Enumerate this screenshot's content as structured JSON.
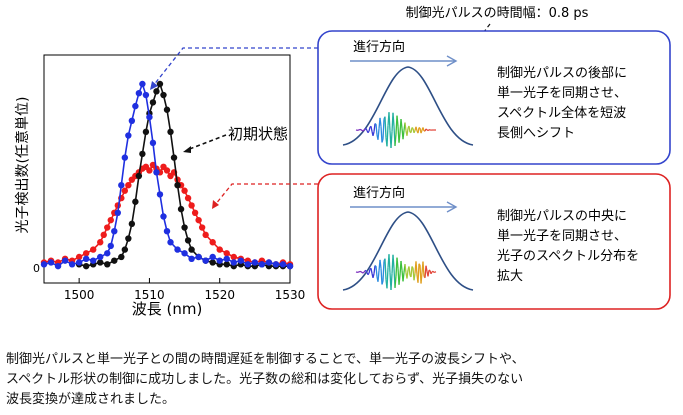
{
  "colors": {
    "blue": "#1f2fe0",
    "black": "#111111",
    "red": "#ee1c1c",
    "box_blue": "#3344cc",
    "box_red": "#dd2222",
    "arrow": "#6f8fc8",
    "gaussian": "#2e4f86"
  },
  "top_label": "制御光パルスの時間幅：0.8 ps",
  "annotation_label": "初期状態",
  "panels": [
    {
      "direction_label": "進行方向",
      "text_lines": [
        "制御光パルスの後部に",
        "単一光子を同期させ、",
        "スペクトル全体を短波",
        "長側へシフト"
      ]
    },
    {
      "direction_label": "進行方向",
      "text_lines": [
        "制御光パルスの中央に",
        "単一光子を同期させ、",
        "光子のスペクトル分布を",
        "拡大"
      ]
    }
  ],
  "caption_lines": [
    "制御光パルスと単一光子との間の時間遅延を制御することで、単一光子の波長シフトや、",
    "スペクトル形状の制御に成功しました。光子数の総和は変化しておらず、光子損失のない",
    "波長変換が達成されました。"
  ],
  "chart_data": {
    "type": "scatter",
    "xlabel": "波長 (nm)",
    "ylabel": "光子検出数(任意単位)",
    "xlim": [
      1495,
      1530
    ],
    "ylim": [
      0,
      1.1
    ],
    "x_ticks": [
      1500,
      1510,
      1520,
      1530
    ],
    "y_ticks": [
      0
    ],
    "grid": false,
    "series": [
      {
        "color": "#1f2fe0",
        "points": [
          [
            1495,
            0.02
          ],
          [
            1496,
            0.03
          ],
          [
            1497,
            0.01
          ],
          [
            1498,
            0.04
          ],
          [
            1499,
            0.02
          ],
          [
            1500,
            0.03
          ],
          [
            1501,
            0.05
          ],
          [
            1502,
            0.04
          ],
          [
            1503,
            0.06
          ],
          [
            1504,
            0.08
          ],
          [
            1504.5,
            0.12
          ],
          [
            1505,
            0.2
          ],
          [
            1505.5,
            0.3
          ],
          [
            1506,
            0.45
          ],
          [
            1506.5,
            0.6
          ],
          [
            1507,
            0.72
          ],
          [
            1507.5,
            0.8
          ],
          [
            1508,
            0.88
          ],
          [
            1508.5,
            0.95
          ],
          [
            1509,
            1.0
          ],
          [
            1509.5,
            0.94
          ],
          [
            1510,
            0.82
          ],
          [
            1510.5,
            0.68
          ],
          [
            1511,
            0.52
          ],
          [
            1511.5,
            0.4
          ],
          [
            1512,
            0.28
          ],
          [
            1512.5,
            0.2
          ],
          [
            1513,
            0.14
          ],
          [
            1514,
            0.1
          ],
          [
            1515,
            0.08
          ],
          [
            1516,
            0.05
          ],
          [
            1517,
            0.06
          ],
          [
            1518,
            0.04
          ],
          [
            1519,
            0.06
          ],
          [
            1520,
            0.04
          ],
          [
            1521,
            0.05
          ],
          [
            1522,
            0.03
          ],
          [
            1523,
            0.04
          ],
          [
            1524,
            0.02
          ],
          [
            1525,
            0.03
          ],
          [
            1526,
            0.02
          ],
          [
            1527,
            0.03
          ],
          [
            1528,
            0.02
          ],
          [
            1529,
            0.02
          ],
          [
            1530,
            0.01
          ]
        ]
      },
      {
        "color": "#111111",
        "points": [
          [
            1500,
            0.02
          ],
          [
            1501,
            0.01
          ],
          [
            1502,
            0.02
          ],
          [
            1503,
            0.03
          ],
          [
            1504,
            0.02
          ],
          [
            1505,
            0.04
          ],
          [
            1506,
            0.06
          ],
          [
            1506.5,
            0.1
          ],
          [
            1507,
            0.16
          ],
          [
            1507.5,
            0.24
          ],
          [
            1508,
            0.36
          ],
          [
            1508.5,
            0.5
          ],
          [
            1509,
            0.62
          ],
          [
            1509.5,
            0.74
          ],
          [
            1510,
            0.84
          ],
          [
            1510.5,
            0.9
          ],
          [
            1511,
            0.96
          ],
          [
            1511.5,
            1.0
          ],
          [
            1512,
            0.94
          ],
          [
            1512.5,
            0.86
          ],
          [
            1513,
            0.74
          ],
          [
            1513.5,
            0.6
          ],
          [
            1514,
            0.45
          ],
          [
            1514.5,
            0.32
          ],
          [
            1515,
            0.22
          ],
          [
            1515.5,
            0.15
          ],
          [
            1516,
            0.1
          ],
          [
            1517,
            0.06
          ],
          [
            1518,
            0.04
          ],
          [
            1519,
            0.03
          ],
          [
            1520,
            0.02
          ],
          [
            1521,
            0.02
          ],
          [
            1522,
            0.01
          ],
          [
            1523,
            0.02
          ],
          [
            1524,
            0.01
          ],
          [
            1525,
            0.01
          ],
          [
            1526,
            0.02
          ],
          [
            1527,
            0.01
          ],
          [
            1528,
            0.01
          ],
          [
            1529,
            0.01
          ],
          [
            1530,
            0.01
          ]
        ]
      },
      {
        "color": "#ee1c1c",
        "points": [
          [
            1495,
            0.03
          ],
          [
            1496,
            0.04
          ],
          [
            1497,
            0.03
          ],
          [
            1498,
            0.05
          ],
          [
            1499,
            0.04
          ],
          [
            1500,
            0.06
          ],
          [
            1501,
            0.08
          ],
          [
            1502,
            0.1
          ],
          [
            1503,
            0.14
          ],
          [
            1503.5,
            0.18
          ],
          [
            1504,
            0.22
          ],
          [
            1504.5,
            0.26
          ],
          [
            1505,
            0.3
          ],
          [
            1505.5,
            0.34
          ],
          [
            1506,
            0.38
          ],
          [
            1506.5,
            0.42
          ],
          [
            1507,
            0.45
          ],
          [
            1507.5,
            0.48
          ],
          [
            1508,
            0.5
          ],
          [
            1508.5,
            0.52
          ],
          [
            1509,
            0.54
          ],
          [
            1509.5,
            0.55
          ],
          [
            1510,
            0.53
          ],
          [
            1510.5,
            0.56
          ],
          [
            1511,
            0.54
          ],
          [
            1511.5,
            0.52
          ],
          [
            1512,
            0.55
          ],
          [
            1512.5,
            0.53
          ],
          [
            1513,
            0.5
          ],
          [
            1513.5,
            0.52
          ],
          [
            1514,
            0.48
          ],
          [
            1514.5,
            0.45
          ],
          [
            1515,
            0.42
          ],
          [
            1515.5,
            0.38
          ],
          [
            1516,
            0.34
          ],
          [
            1516.5,
            0.3
          ],
          [
            1517,
            0.26
          ],
          [
            1517.5,
            0.22
          ],
          [
            1518,
            0.18
          ],
          [
            1519,
            0.14
          ],
          [
            1520,
            0.1
          ],
          [
            1521,
            0.08
          ],
          [
            1522,
            0.06
          ],
          [
            1523,
            0.05
          ],
          [
            1524,
            0.04
          ],
          [
            1525,
            0.03
          ],
          [
            1526,
            0.04
          ],
          [
            1527,
            0.03
          ],
          [
            1528,
            0.02
          ],
          [
            1529,
            0.03
          ],
          [
            1530,
            0.02
          ]
        ]
      }
    ]
  }
}
